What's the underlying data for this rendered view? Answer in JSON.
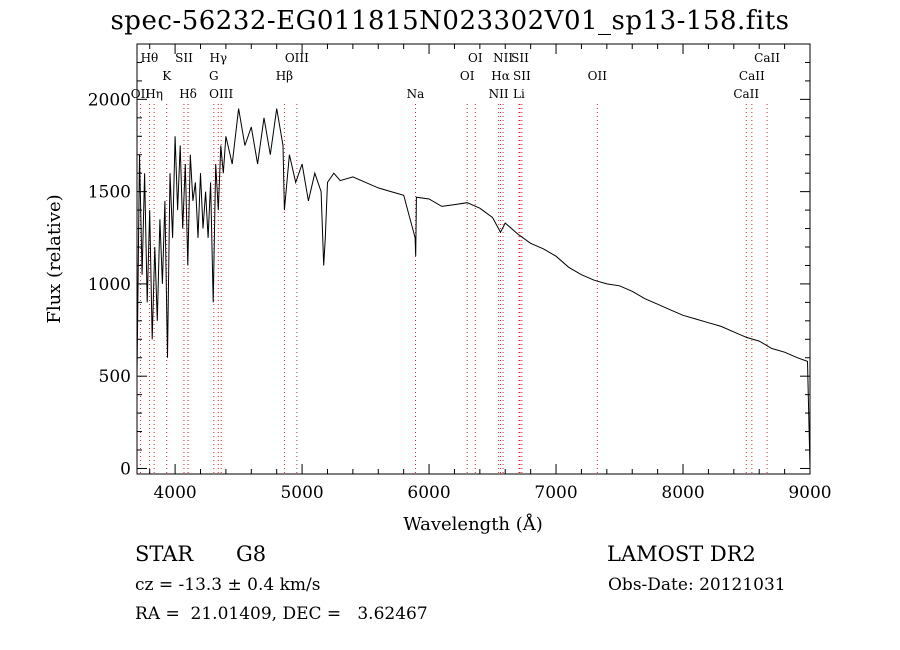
{
  "chart_data": {
    "type": "line",
    "title": "spec-56232-EG011815N023302V01_sp13-158.fits",
    "xlabel": "Wavelength (Å)",
    "ylabel": "Flux (relative)",
    "xlim": [
      3700,
      9000
    ],
    "ylim": [
      -30,
      2300
    ],
    "x_ticks": [
      "4000",
      "5000",
      "6000",
      "7000",
      "8000",
      "9000"
    ],
    "x_tick_values": [
      4000,
      5000,
      6000,
      7000,
      8000,
      9000
    ],
    "y_ticks": [
      "0",
      "500",
      "1000",
      "1500",
      "2000"
    ],
    "y_tick_values": [
      0,
      500,
      1000,
      1500,
      2000
    ],
    "grid": false,
    "line_color": "#000000",
    "marker_line_color": "#d62728",
    "series": [
      {
        "x": [
          3700,
          3720,
          3740,
          3760,
          3780,
          3800,
          3820,
          3840,
          3860,
          3880,
          3900,
          3920,
          3940,
          3960,
          3980,
          4000,
          4020,
          4040,
          4060,
          4080,
          4100,
          4120,
          4140,
          4160,
          4180,
          4200,
          4220,
          4240,
          4260,
          4280,
          4300,
          4320,
          4340,
          4360,
          4380,
          4400,
          4450,
          4500,
          4550,
          4600,
          4650,
          4700,
          4750,
          4800,
          4850,
          4861,
          4900,
          4950,
          5000,
          5050,
          5100,
          5150,
          5170,
          5183,
          5200,
          5250,
          5300,
          5400,
          5500,
          5600,
          5700,
          5800,
          5890,
          5895,
          5900,
          6000,
          6100,
          6200,
          6300,
          6400,
          6500,
          6563,
          6600,
          6700,
          6800,
          6900,
          7000,
          7100,
          7200,
          7300,
          7400,
          7500,
          7600,
          7700,
          7800,
          7900,
          8000,
          8100,
          8200,
          8300,
          8400,
          8500,
          8600,
          8700,
          8800,
          8900,
          8980,
          9000
        ],
        "y": [
          500,
          1700,
          1050,
          1600,
          900,
          1400,
          700,
          1200,
          800,
          1350,
          1000,
          1450,
          600,
          1600,
          1250,
          1800,
          1400,
          1750,
          1300,
          1650,
          1100,
          1700,
          1450,
          1550,
          1250,
          1600,
          1300,
          1500,
          1250,
          1550,
          900,
          1650,
          1400,
          1750,
          1600,
          1800,
          1650,
          1950,
          1750,
          1850,
          1650,
          1900,
          1700,
          1950,
          1750,
          1400,
          1700,
          1550,
          1650,
          1450,
          1600,
          1500,
          1100,
          1250,
          1550,
          1600,
          1560,
          1580,
          1550,
          1520,
          1500,
          1480,
          1250,
          1150,
          1470,
          1460,
          1420,
          1430,
          1440,
          1410,
          1360,
          1280,
          1330,
          1270,
          1220,
          1190,
          1150,
          1090,
          1050,
          1020,
          1000,
          990,
          960,
          920,
          890,
          860,
          830,
          810,
          790,
          770,
          740,
          710,
          690,
          650,
          630,
          600,
          580,
          0
        ]
      }
    ],
    "lines": [
      {
        "label": "Hθ",
        "wave": 3798,
        "row": 1
      },
      {
        "label": "OII",
        "wave": 3727,
        "row": 3
      },
      {
        "label": "Hη",
        "wave": 3835,
        "row": 3
      },
      {
        "label": "K",
        "wave": 3934,
        "row": 2
      },
      {
        "label": "SII",
        "wave": 4070,
        "row": 1
      },
      {
        "label": "Hδ",
        "wave": 4102,
        "row": 3
      },
      {
        "label": "Hγ",
        "wave": 4340,
        "row": 1
      },
      {
        "label": "G",
        "wave": 4305,
        "row": 2
      },
      {
        "label": "OIII",
        "wave": 4363,
        "row": 3
      },
      {
        "label": "OIII",
        "wave": 4959,
        "row": 1
      },
      {
        "label": "Hβ",
        "wave": 4861,
        "row": 2
      },
      {
        "label": "Na",
        "wave": 5893,
        "row": 3
      },
      {
        "label": "OI",
        "wave": 6364,
        "row": 1
      },
      {
        "label": "OI",
        "wave": 6300,
        "row": 2
      },
      {
        "label": "NII",
        "wave": 6583,
        "row": 1
      },
      {
        "label": "SII",
        "wave": 6716,
        "row": 1
      },
      {
        "label": "Hα",
        "wave": 6563,
        "row": 2
      },
      {
        "label": "SII",
        "wave": 6731,
        "row": 2
      },
      {
        "label": "NII",
        "wave": 6548,
        "row": 3
      },
      {
        "label": "Li",
        "wave": 6708,
        "row": 3
      },
      {
        "label": "OII",
        "wave": 7325,
        "row": 2
      },
      {
        "label": "CaII",
        "wave": 8662,
        "row": 1
      },
      {
        "label": "CaII",
        "wave": 8542,
        "row": 2
      },
      {
        "label": "CaII",
        "wave": 8498,
        "row": 3
      }
    ]
  },
  "info": {
    "class_label": "STAR",
    "subclass": "G8",
    "survey": "LAMOST DR2",
    "cz": "cz = -13.3 ± 0.4 km/s",
    "obs_date": "Obs-Date: 20121031",
    "coords": "RA =  21.01409, DEC =   3.62467"
  }
}
